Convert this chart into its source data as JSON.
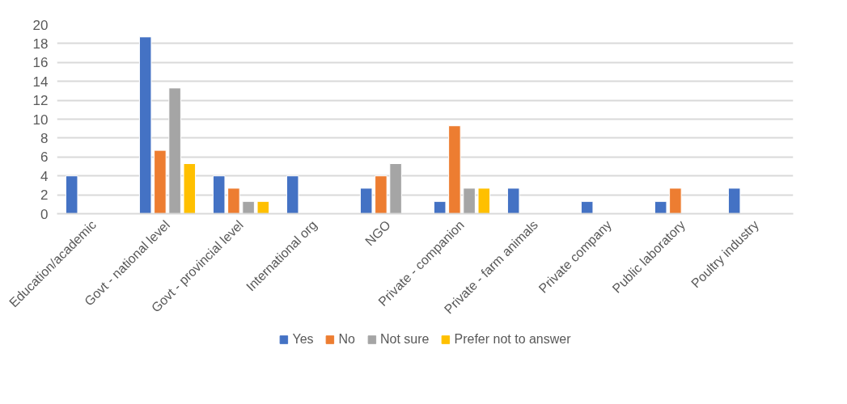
{
  "chart_data": {
    "type": "bar",
    "categories": [
      "Education/academic",
      "Govt - national level",
      "Govt - provincial level",
      "International org",
      "NGO",
      "Private - companion",
      "Private - farm animals",
      "Private company",
      "Public laboratory",
      "Poultry industry"
    ],
    "series": [
      {
        "name": "Yes",
        "color": "#4472c4",
        "values": [
          4,
          18.7,
          4,
          4,
          2.7,
          1.3,
          2.7,
          1.3,
          1.3,
          2.7
        ]
      },
      {
        "name": "No",
        "color": "#ed7d31",
        "values": [
          null,
          6.7,
          2.7,
          null,
          4,
          9.3,
          null,
          null,
          2.7,
          null
        ]
      },
      {
        "name": "Not sure",
        "color": "#a5a5a5",
        "values": [
          null,
          13.3,
          1.3,
          null,
          5.3,
          2.7,
          null,
          null,
          null,
          null
        ]
      },
      {
        "name": "Prefer not to answer",
        "color": "#ffc000",
        "values": [
          null,
          5.3,
          1.3,
          null,
          null,
          2.7,
          null,
          null,
          null,
          null
        ]
      }
    ],
    "ylim": [
      0,
      20
    ],
    "yticks": [
      0,
      2,
      4,
      6,
      8,
      10,
      12,
      14,
      16,
      18,
      20
    ],
    "grid": "y",
    "legend": "bottom"
  }
}
